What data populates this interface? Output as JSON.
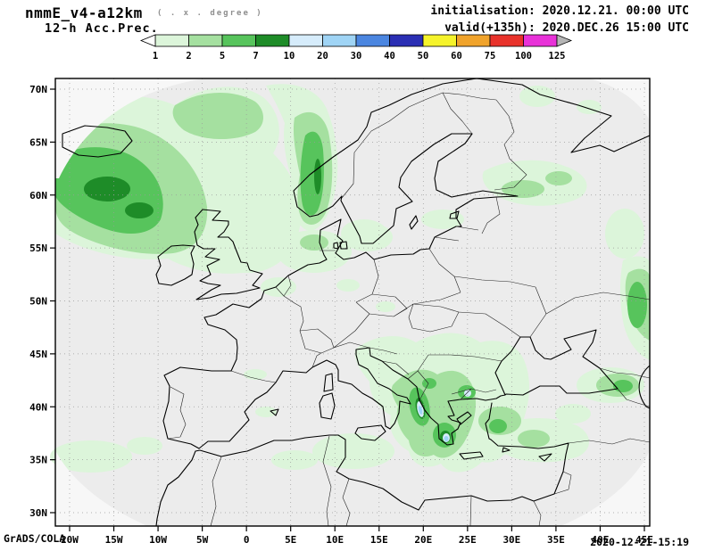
{
  "header": {
    "model_title": "nmmE_v4-a12km",
    "degree_note": "( . x . degree )",
    "field_label": "12-h Acc.Prec.",
    "initialisation": "initialisation: 2020.12.21.  00:00 UTC",
    "valid": "valid(+135h): 2020.DEC.26 15:00 UTC"
  },
  "legend": {
    "boundaries": [
      "1",
      "2",
      "5",
      "7",
      "10",
      "20",
      "30",
      "40",
      "50",
      "60",
      "75",
      "100",
      "125"
    ],
    "colors": [
      "#dcf5da",
      "#a5e0a0",
      "#57c45c",
      "#1e8c28",
      "#d6ecfb",
      "#9fd4f5",
      "#4b86e0",
      "#2b2fb4",
      "#f5f32b",
      "#f0a32b",
      "#e8322b",
      "#e832d8"
    ],
    "below_min_color": "#ffffff",
    "above_max_color": "#b5b5b5"
  },
  "map": {
    "lat_labels": [
      "70N",
      "65N",
      "60N",
      "55N",
      "50N",
      "45N",
      "40N",
      "35N",
      "30N"
    ],
    "lon_labels": [
      "20W",
      "15W",
      "10W",
      "5W",
      "0",
      "5E",
      "10E",
      "15E",
      "20E",
      "25E",
      "30E",
      "35E",
      "40E",
      "45E"
    ],
    "background": "#ececec",
    "outside_domain": "#f7f7f7"
  },
  "footer": {
    "left": "GrADS/COLA",
    "timestamp": "2020-12-21-15:19"
  }
}
